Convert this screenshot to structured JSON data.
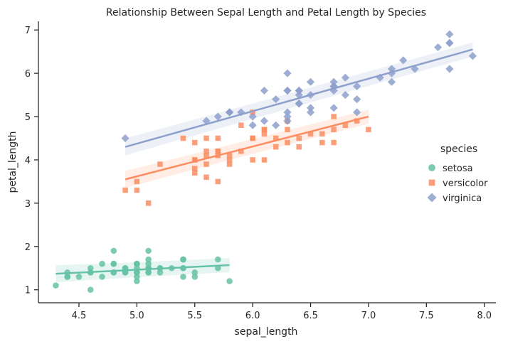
{
  "chart_data": {
    "type": "scatter",
    "title": "Relationship Between Sepal Length and Petal Length by Species",
    "xlabel": "sepal_length",
    "ylabel": "petal_length",
    "xlim": [
      4.15,
      8.1
    ],
    "ylim": [
      0.7,
      7.2
    ],
    "xticks": [
      "4.5",
      "5.0",
      "5.5",
      "6.0",
      "6.5",
      "7.0",
      "7.5",
      "8.0"
    ],
    "yticks": [
      "1",
      "2",
      "3",
      "4",
      "5",
      "6",
      "7"
    ],
    "grid": false,
    "legend": {
      "title": "species",
      "placement": "right"
    },
    "series": [
      {
        "name": "setosa",
        "marker": "circle",
        "color": "#66c2a5",
        "fit": {
          "x": [
            4.3,
            5.8
          ],
          "y": [
            1.37,
            1.57
          ]
        },
        "points": [
          [
            5.1,
            1.4
          ],
          [
            4.9,
            1.4
          ],
          [
            4.7,
            1.3
          ],
          [
            4.6,
            1.5
          ],
          [
            5.0,
            1.4
          ],
          [
            5.4,
            1.7
          ],
          [
            4.6,
            1.4
          ],
          [
            5.0,
            1.5
          ],
          [
            4.4,
            1.4
          ],
          [
            4.9,
            1.5
          ],
          [
            5.4,
            1.5
          ],
          [
            4.8,
            1.6
          ],
          [
            4.8,
            1.4
          ],
          [
            4.3,
            1.1
          ],
          [
            5.8,
            1.2
          ],
          [
            5.7,
            1.5
          ],
          [
            5.4,
            1.3
          ],
          [
            5.1,
            1.4
          ],
          [
            5.7,
            1.7
          ],
          [
            5.1,
            1.5
          ],
          [
            5.4,
            1.7
          ],
          [
            5.1,
            1.5
          ],
          [
            4.6,
            1.0
          ],
          [
            5.1,
            1.7
          ],
          [
            4.8,
            1.9
          ],
          [
            5.0,
            1.6
          ],
          [
            5.0,
            1.6
          ],
          [
            5.2,
            1.5
          ],
          [
            5.2,
            1.4
          ],
          [
            4.7,
            1.6
          ],
          [
            4.8,
            1.6
          ],
          [
            5.4,
            1.5
          ],
          [
            5.2,
            1.5
          ],
          [
            5.5,
            1.4
          ],
          [
            4.9,
            1.5
          ],
          [
            5.0,
            1.2
          ],
          [
            5.5,
            1.3
          ],
          [
            4.9,
            1.4
          ],
          [
            4.4,
            1.3
          ],
          [
            5.1,
            1.5
          ],
          [
            5.0,
            1.3
          ],
          [
            4.5,
            1.3
          ],
          [
            4.4,
            1.3
          ],
          [
            5.0,
            1.6
          ],
          [
            5.1,
            1.9
          ],
          [
            4.8,
            1.4
          ],
          [
            5.1,
            1.6
          ],
          [
            4.6,
            1.4
          ],
          [
            5.3,
            1.5
          ],
          [
            5.0,
            1.4
          ]
        ]
      },
      {
        "name": "versicolor",
        "marker": "square",
        "color": "#fc8d62",
        "fit": {
          "x": [
            4.9,
            7.0
          ],
          "y": [
            3.55,
            5.0
          ]
        },
        "points": [
          [
            7.0,
            4.7
          ],
          [
            6.4,
            4.5
          ],
          [
            6.9,
            4.9
          ],
          [
            5.5,
            4.0
          ],
          [
            6.5,
            4.6
          ],
          [
            5.7,
            4.5
          ],
          [
            6.3,
            4.7
          ],
          [
            4.9,
            3.3
          ],
          [
            6.6,
            4.6
          ],
          [
            5.2,
            3.9
          ],
          [
            5.0,
            3.5
          ],
          [
            5.9,
            4.2
          ],
          [
            6.0,
            4.0
          ],
          [
            6.1,
            4.7
          ],
          [
            5.6,
            3.6
          ],
          [
            6.7,
            4.4
          ],
          [
            5.6,
            4.5
          ],
          [
            5.8,
            4.1
          ],
          [
            6.2,
            4.5
          ],
          [
            5.6,
            3.9
          ],
          [
            5.9,
            4.8
          ],
          [
            6.1,
            4.0
          ],
          [
            6.3,
            4.9
          ],
          [
            6.1,
            4.7
          ],
          [
            6.4,
            4.3
          ],
          [
            6.6,
            4.4
          ],
          [
            6.8,
            4.8
          ],
          [
            6.7,
            5.0
          ],
          [
            6.0,
            4.5
          ],
          [
            5.7,
            3.5
          ],
          [
            5.5,
            3.8
          ],
          [
            5.5,
            3.7
          ],
          [
            5.8,
            3.9
          ],
          [
            6.0,
            5.1
          ],
          [
            5.4,
            4.5
          ],
          [
            6.0,
            4.5
          ],
          [
            6.7,
            4.7
          ],
          [
            6.3,
            4.4
          ],
          [
            5.6,
            4.1
          ],
          [
            5.5,
            4.0
          ],
          [
            5.5,
            4.4
          ],
          [
            6.1,
            4.6
          ],
          [
            5.8,
            4.0
          ],
          [
            5.0,
            3.3
          ],
          [
            5.6,
            4.2
          ],
          [
            5.7,
            4.2
          ],
          [
            5.7,
            4.2
          ],
          [
            6.2,
            4.3
          ],
          [
            5.1,
            3.0
          ],
          [
            5.7,
            4.1
          ]
        ]
      },
      {
        "name": "virginica",
        "marker": "diamond",
        "color": "#8da0cb",
        "fit": {
          "x": [
            4.9,
            7.9
          ],
          "y": [
            4.3,
            6.55
          ]
        },
        "points": [
          [
            6.3,
            6.0
          ],
          [
            5.8,
            5.1
          ],
          [
            7.1,
            5.9
          ],
          [
            6.3,
            5.6
          ],
          [
            6.5,
            5.8
          ],
          [
            7.6,
            6.6
          ],
          [
            4.9,
            4.5
          ],
          [
            7.3,
            6.3
          ],
          [
            6.7,
            5.8
          ],
          [
            7.2,
            6.1
          ],
          [
            6.5,
            5.1
          ],
          [
            6.4,
            5.3
          ],
          [
            6.8,
            5.5
          ],
          [
            5.7,
            5.0
          ],
          [
            5.8,
            5.1
          ],
          [
            6.4,
            5.3
          ],
          [
            6.5,
            5.5
          ],
          [
            7.7,
            6.7
          ],
          [
            7.7,
            6.9
          ],
          [
            6.0,
            5.0
          ],
          [
            6.9,
            5.7
          ],
          [
            5.6,
            4.9
          ],
          [
            7.7,
            6.7
          ],
          [
            6.3,
            4.9
          ],
          [
            6.7,
            5.7
          ],
          [
            7.2,
            6.0
          ],
          [
            6.2,
            4.8
          ],
          [
            6.1,
            4.9
          ],
          [
            6.4,
            5.6
          ],
          [
            7.2,
            5.8
          ],
          [
            7.4,
            6.1
          ],
          [
            7.9,
            6.4
          ],
          [
            6.4,
            5.6
          ],
          [
            6.3,
            5.1
          ],
          [
            6.1,
            5.6
          ],
          [
            7.7,
            6.1
          ],
          [
            6.3,
            5.6
          ],
          [
            6.4,
            5.5
          ],
          [
            6.0,
            4.8
          ],
          [
            6.9,
            5.4
          ],
          [
            6.7,
            5.6
          ],
          [
            6.9,
            5.1
          ],
          [
            5.8,
            5.1
          ],
          [
            6.8,
            5.9
          ],
          [
            6.7,
            5.7
          ],
          [
            6.7,
            5.2
          ],
          [
            6.3,
            5.0
          ],
          [
            6.5,
            5.2
          ],
          [
            6.2,
            5.4
          ],
          [
            5.9,
            5.1
          ]
        ]
      }
    ]
  }
}
